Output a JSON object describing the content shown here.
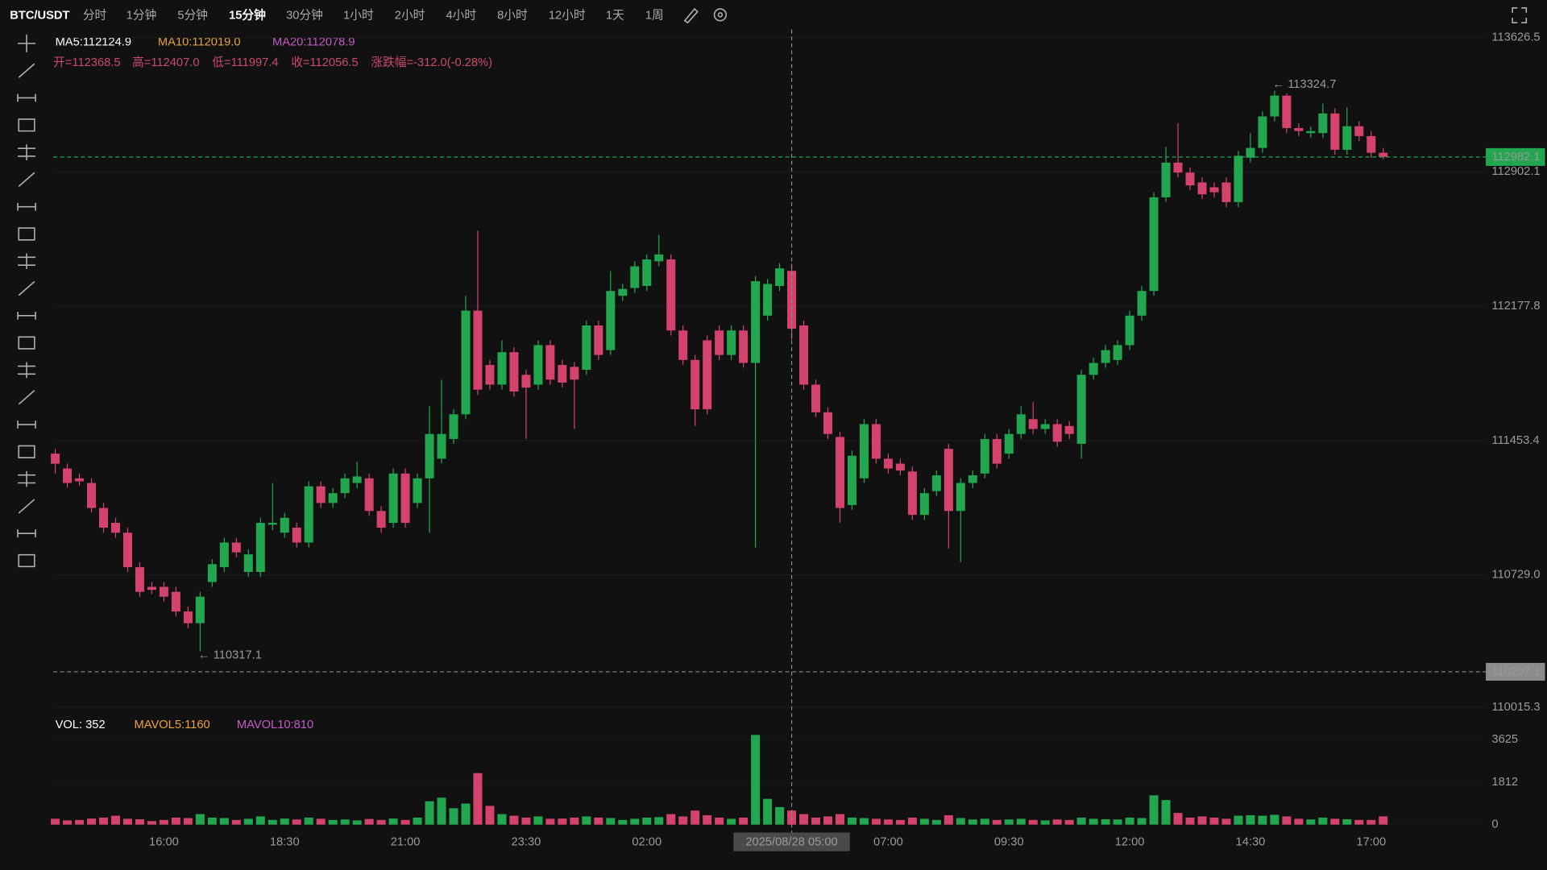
{
  "toolbar": {
    "symbol": "BTC/USDT",
    "intervals": [
      "分时",
      "1分钟",
      "5分钟",
      "15分钟",
      "30分钟",
      "1小时",
      "2小时",
      "4小时",
      "8小时",
      "12小时",
      "1天",
      "1周"
    ]
  },
  "chart_data": {
    "type": "candlestick",
    "legend": [
      "MA5:112124.9",
      "MA10:112019.0",
      "MA20:112078.9"
    ],
    "info": [
      "开=112368.5",
      "高=112407.0",
      "低=111997.4",
      "收=112056.5",
      "涨跌幅=-312.0(-0.28%)"
    ],
    "volume_legend": [
      "VOL: 352",
      "MAVOL5:1160",
      "MAVOL10:810"
    ],
    "annotations": {
      "high": "← 113324.7",
      "low": "← 110317.1"
    },
    "up_color": "#22a64f",
    "down_color": "#d4436b",
    "grid": true,
    "categories": [
      null,
      null,
      null,
      null,
      null,
      null,
      null,
      null,
      null,
      "16:00",
      null,
      null,
      null,
      null,
      null,
      null,
      null,
      null,
      null,
      "18:30",
      null,
      null,
      null,
      null,
      null,
      null,
      null,
      null,
      null,
      "21:00",
      null,
      null,
      null,
      null,
      null,
      null,
      null,
      null,
      null,
      "23:30",
      null,
      null,
      null,
      null,
      null,
      null,
      null,
      null,
      null,
      "02:00",
      null,
      null,
      null,
      null,
      null,
      null,
      null,
      null,
      null,
      null,
      null,
      "2025/08/28 05:00",
      null,
      null,
      null,
      null,
      null,
      null,
      null,
      "07:00",
      null,
      null,
      null,
      null,
      null,
      null,
      null,
      null,
      null,
      "09:30",
      null,
      null,
      null,
      null,
      null,
      null,
      null,
      null,
      null,
      "12:00",
      null,
      null,
      null,
      null,
      null,
      null,
      null,
      null,
      null,
      "14:30",
      null,
      null,
      null,
      null,
      null,
      null,
      null,
      null,
      null,
      "17:00",
      null
    ],
    "open": [
      111383,
      111303,
      111250,
      111225,
      111090,
      111010,
      110957,
      110771,
      110665,
      110665,
      110638,
      110532,
      110469,
      110691,
      110771,
      110904,
      110745,
      110745,
      111000,
      110957,
      110984,
      110904,
      111207,
      111117,
      111170,
      111225,
      111250,
      111074,
      111010,
      111276,
      111117,
      111250,
      111356,
      111462,
      111595,
      112154,
      111861,
      111755,
      111930,
      111808,
      111755,
      111968,
      111861,
      111851,
      111835,
      112074,
      111941,
      112234,
      112276,
      112287,
      112420,
      112430,
      112047,
      111888,
      111994,
      112047,
      111915,
      112047,
      111872,
      112127,
      112287,
      112368.5,
      112074,
      111755,
      111606,
      111473,
      111106,
      111250,
      111542,
      111356,
      111329,
      111287,
      111053,
      111181,
      111409,
      111074,
      111225,
      111276,
      111462,
      111383,
      111489,
      111569,
      111516,
      111542,
      111532,
      111436,
      111808,
      111872,
      111888,
      111968,
      112127,
      112260,
      112765,
      112952,
      112898,
      112845,
      112819,
      112845,
      112739,
      112978,
      113031,
      113201,
      113313,
      113138,
      113111,
      113111,
      113217,
      113021,
      113148,
      113095,
      113005
    ],
    "high": [
      111409,
      111330,
      111276,
      111250,
      111117,
      111037,
      110984,
      110798,
      110691,
      110691,
      110665,
      110558,
      110638,
      110814,
      110930,
      110930,
      110867,
      111037,
      111225,
      111064,
      111010,
      111234,
      111234,
      111197,
      111276,
      111340,
      111276,
      111100,
      111303,
      111303,
      111276,
      111638,
      111781,
      111622,
      112234,
      112585,
      111888,
      111994,
      111957,
      111835,
      111994,
      111994,
      111888,
      111878,
      112100,
      112100,
      112367,
      112298,
      112420,
      112457,
      112563,
      112457,
      112074,
      111915,
      112020,
      112074,
      112074,
      112074,
      112340,
      112325,
      112410,
      112407,
      112100,
      111782,
      111632,
      111500,
      111400,
      111569,
      111569,
      111383,
      111356,
      111313,
      111197,
      111292,
      111436,
      111250,
      111292,
      111489,
      111489,
      111516,
      111638,
      111662,
      111569,
      111569,
      111558,
      111835,
      111900,
      111968,
      111994,
      112154,
      112287,
      112792,
      113037,
      113164,
      112925,
      112872,
      112845,
      112872,
      113015,
      113111,
      113228,
      113340,
      113324.7,
      113164,
      113148,
      113270,
      113244,
      113250,
      113175,
      113122,
      113031
    ],
    "low": [
      111276,
      111200,
      111210,
      111066,
      110957,
      110930,
      110745,
      110612,
      110625,
      110585,
      110505,
      110442,
      110317.1,
      110665,
      110745,
      110825,
      110718,
      110718,
      110970,
      110930,
      110877,
      110877,
      111090,
      111090,
      111143,
      111197,
      111048,
      110957,
      110984,
      110984,
      111090,
      110957,
      111330,
      111436,
      111569,
      111700,
      111728,
      111728,
      111690,
      111462,
      111728,
      111755,
      111740,
      111516,
      111808,
      111888,
      111915,
      112207,
      112250,
      112260,
      112393,
      112020,
      111861,
      111532,
      111595,
      111888,
      111888,
      111846,
      110877,
      112100,
      112260,
      111997.4,
      111728,
      111580,
      111462,
      111010,
      111080,
      111225,
      111330,
      111276,
      111266,
      111026,
      111026,
      111155,
      110872,
      110798,
      111197,
      111250,
      111303,
      111356,
      111462,
      111489,
      111489,
      111420,
      111462,
      111356,
      111782,
      111846,
      111861,
      111941,
      112100,
      112234,
      112739,
      112872,
      112803,
      112755,
      112765,
      112712,
      112712,
      112952,
      113005,
      113175,
      113111,
      113095,
      113085,
      113085,
      112995,
      112995,
      113068,
      112978,
      112970
    ],
    "close": [
      111329,
      111225,
      111234,
      111090,
      110984,
      110957,
      110771,
      110638,
      110649,
      110612,
      110532,
      110469,
      110612,
      110787,
      110904,
      110851,
      110840,
      111010,
      111010,
      111037,
      110904,
      111207,
      111117,
      111170,
      111250,
      111260,
      111074,
      110984,
      111276,
      111010,
      111250,
      111489,
      111489,
      111595,
      112154,
      111728,
      111755,
      111930,
      111718,
      111739,
      111968,
      111782,
      111766,
      111782,
      112074,
      111915,
      112260,
      112271,
      112393,
      112430,
      112457,
      112047,
      111888,
      111622,
      111622,
      111915,
      112047,
      111872,
      112313,
      112298,
      112382,
      112056.5,
      111755,
      111606,
      111489,
      111090,
      111372,
      111542,
      111356,
      111303,
      111292,
      111053,
      111170,
      111266,
      111074,
      111225,
      111266,
      111462,
      111329,
      111489,
      111595,
      111516,
      111542,
      111447,
      111489,
      111808,
      111872,
      111941,
      111968,
      112127,
      112260,
      112765,
      112952,
      112898,
      112829,
      112781,
      112792,
      112739,
      112989,
      113031,
      113201,
      113313,
      113138,
      113122,
      113122,
      113217,
      113021,
      113148,
      113095,
      113005,
      112982.1
    ],
    "volume": [
      250,
      180,
      200,
      260,
      300,
      380,
      250,
      230,
      150,
      200,
      300,
      280,
      450,
      300,
      280,
      200,
      250,
      350,
      200,
      260,
      220,
      300,
      250,
      200,
      220,
      180,
      240,
      200,
      260,
      200,
      300,
      1000,
      1150,
      700,
      900,
      2200,
      800,
      450,
      380,
      300,
      350,
      250,
      260,
      300,
      350,
      300,
      280,
      200,
      250,
      300,
      320,
      450,
      350,
      600,
      400,
      300,
      250,
      300,
      3830,
      1100,
      750,
      600,
      450,
      300,
      350,
      450,
      300,
      280,
      250,
      220,
      200,
      300,
      250,
      200,
      400,
      280,
      220,
      250,
      200,
      220,
      250,
      200,
      180,
      220,
      200,
      300,
      250,
      230,
      220,
      300,
      280,
      1250,
      1050,
      500,
      300,
      350,
      300,
      250,
      380,
      400,
      380,
      420,
      350,
      250,
      220,
      300,
      250,
      230,
      200,
      200,
      352
    ],
    "ylim": [
      109984,
      113669
    ],
    "yticks": [
      113626.5,
      112902.1,
      112177.8,
      111453.4,
      {
        "value": 110729.0,
        "label": "110729.0"
      },
      110015.3
    ],
    "vol_ylim": [
      0,
      4590
    ],
    "vol_yticks": [
      0,
      1812,
      3625
    ],
    "price_lines": [
      {
        "value": 112982.1,
        "color": "#22a64f"
      },
      {
        "value": 110207.1,
        "color": "#8c8c8c"
      }
    ]
  }
}
